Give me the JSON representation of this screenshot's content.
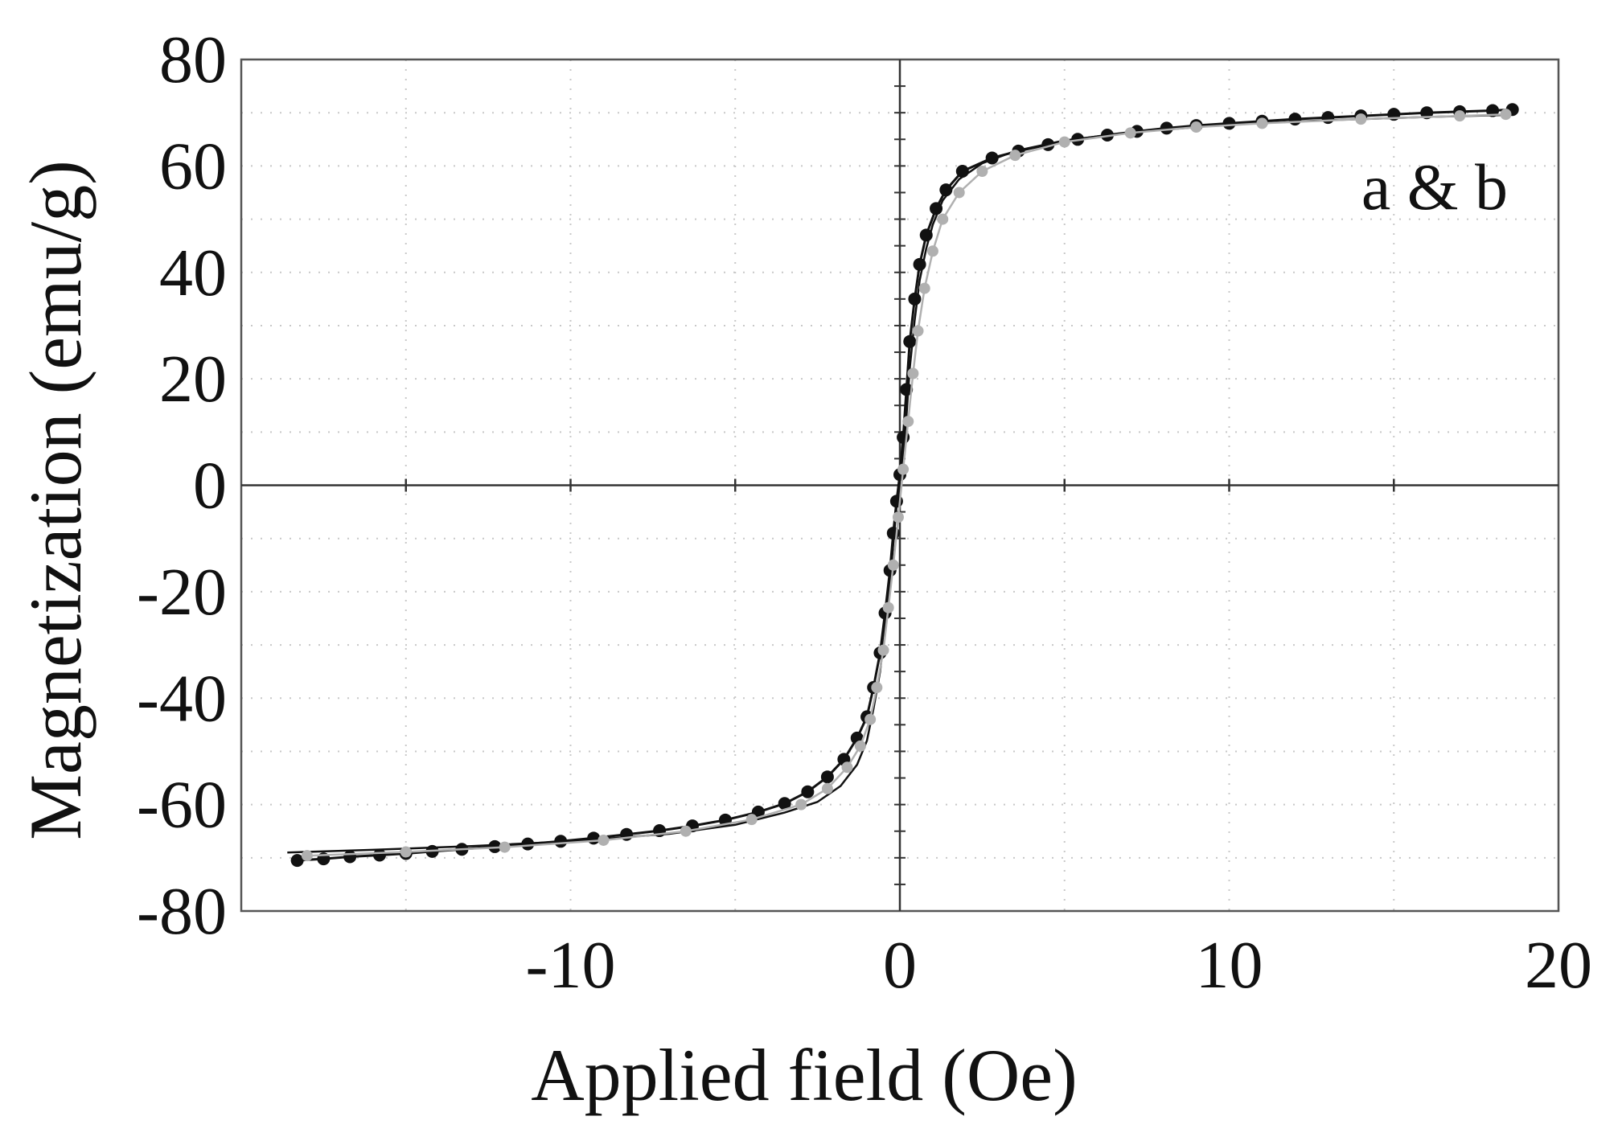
{
  "chart_data": {
    "type": "line",
    "title": "",
    "xlabel": "Applied field (Oe)",
    "ylabel": "Magnetization (emu/g)",
    "annotation": "a & b",
    "xlim": [
      -20,
      20
    ],
    "ylim": [
      -80,
      80
    ],
    "x_ticks": [
      -10,
      0,
      10,
      20
    ],
    "x_tick_labels": [
      "-10",
      "0",
      "10",
      "20"
    ],
    "y_ticks": [
      80,
      60,
      40,
      20,
      0,
      -20,
      -40,
      -60,
      -80
    ],
    "y_tick_labels": [
      "80",
      "60",
      "40",
      "20",
      "0",
      "-20",
      "-40",
      "-60",
      "-80"
    ],
    "grid": true,
    "legend": "none",
    "series": [
      {
        "color": "#111111",
        "marker": "circle",
        "x": [
          -18.3,
          -17.5,
          -16.7,
          -15.8,
          -15.0,
          -14.2,
          -13.3,
          -12.3,
          -11.3,
          -10.3,
          -9.3,
          -8.3,
          -7.3,
          -6.3,
          -5.3,
          -4.3,
          -3.5,
          -2.8,
          -2.2,
          -1.7,
          -1.3,
          -1.0,
          -0.8,
          -0.6,
          -0.45,
          -0.3,
          -0.2,
          -0.1,
          0.0,
          0.1,
          0.2,
          0.3,
          0.45,
          0.6,
          0.8,
          1.1,
          1.4,
          1.9,
          2.8,
          3.6,
          4.5,
          5.4,
          6.3,
          7.2,
          8.1,
          9.0,
          10.0,
          11.0,
          12.0,
          13.0,
          14.0,
          15.0,
          16.0,
          17.0,
          18.0,
          18.6
        ],
        "y": [
          -70.5,
          -70.2,
          -69.8,
          -69.5,
          -69.2,
          -68.8,
          -68.4,
          -67.9,
          -67.4,
          -66.9,
          -66.3,
          -65.6,
          -64.9,
          -64.0,
          -62.9,
          -61.4,
          -59.8,
          -57.6,
          -54.8,
          -51.5,
          -47.5,
          -43.5,
          -38.0,
          -31.5,
          -24.0,
          -16.0,
          -9.0,
          -3.0,
          2.0,
          9.0,
          18.0,
          27.0,
          35.0,
          41.5,
          47.0,
          52.0,
          55.5,
          59.0,
          61.5,
          62.8,
          64.0,
          65.0,
          65.8,
          66.5,
          67.1,
          67.6,
          68.0,
          68.4,
          68.8,
          69.1,
          69.4,
          69.7,
          70.0,
          70.2,
          70.4,
          70.6
        ]
      },
      {
        "color": "#111111",
        "marker": "none",
        "x": [
          -18.6,
          -16.0,
          -13.0,
          -10.0,
          -7.0,
          -5.0,
          -3.5,
          -2.5,
          -1.8,
          -1.3,
          -1.0,
          -0.8,
          -0.6,
          -0.45,
          -0.3,
          -0.2,
          -0.1,
          0.0,
          0.1,
          0.2,
          0.3,
          0.45,
          0.6,
          0.8,
          1.0,
          1.3,
          1.8,
          2.5,
          3.5,
          5.0,
          7.0,
          10.0,
          13.0,
          16.0,
          18.6
        ],
        "y": [
          -69.0,
          -68.5,
          -67.8,
          -66.9,
          -65.5,
          -63.8,
          -61.5,
          -59.5,
          -56.5,
          -52.5,
          -48.0,
          -42.0,
          -35.0,
          -27.0,
          -19.0,
          -11.0,
          -4.0,
          1.0,
          6.0,
          13.0,
          22.0,
          31.0,
          38.5,
          44.5,
          49.0,
          53.5,
          57.5,
          60.5,
          62.8,
          64.8,
          66.3,
          67.8,
          68.6,
          69.2,
          69.6
        ]
      },
      {
        "color": "#b0b0b0",
        "marker": "circle",
        "x": [
          -18.0,
          -15.0,
          -12.0,
          -9.0,
          -6.5,
          -4.5,
          -3.0,
          -2.2,
          -1.6,
          -1.2,
          -0.9,
          -0.7,
          -0.5,
          -0.35,
          -0.2,
          -0.05,
          0.1,
          0.25,
          0.4,
          0.55,
          0.75,
          1.0,
          1.3,
          1.8,
          2.5,
          3.5,
          5.0,
          7.0,
          9.0,
          11.0,
          14.0,
          17.0,
          18.4
        ],
        "y": [
          -69.6,
          -68.9,
          -68.0,
          -66.7,
          -65.0,
          -62.8,
          -60.0,
          -57.0,
          -53.0,
          -49.0,
          -44.0,
          -38.0,
          -31.0,
          -23.0,
          -15.0,
          -6.0,
          3.0,
          12.0,
          21.0,
          29.0,
          37.0,
          44.0,
          50.0,
          55.0,
          59.0,
          62.0,
          64.5,
          66.2,
          67.3,
          68.0,
          68.8,
          69.4,
          69.7
        ]
      }
    ]
  }
}
